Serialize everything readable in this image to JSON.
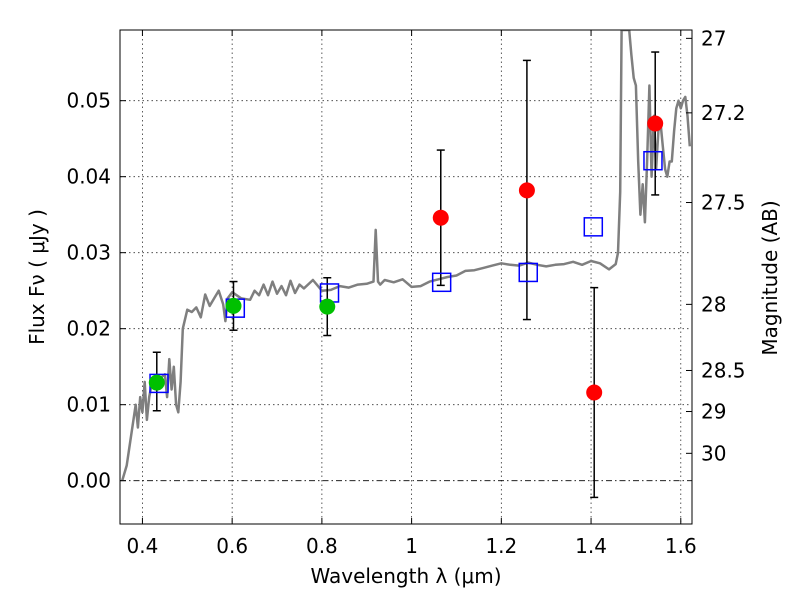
{
  "chart_data": {
    "type": "scatter",
    "title": "",
    "xlabel": "Wavelength  λ (μm)",
    "ylabel": "Flux  Fν  ( μJy )",
    "ylabel_right": "Magnitude (AB)",
    "xlim": [
      0.35,
      1.625
    ],
    "ylim": [
      -0.0057,
      0.0593
    ],
    "x_ticks": [
      0.4,
      0.6,
      0.8,
      1.0,
      1.2,
      1.4,
      1.6
    ],
    "x_tick_labels": [
      "0.4",
      "0.6",
      "0.8",
      "1",
      "1.2",
      "1.4",
      "1.6"
    ],
    "y_ticks": [
      0.0,
      0.01,
      0.02,
      0.03,
      0.04,
      0.05
    ],
    "y_tick_labels": [
      "0.00",
      "0.01",
      "0.02",
      "0.03",
      "0.04",
      "0.05"
    ],
    "right_ticks": [
      {
        "label": "27",
        "flux": 0.0582
      },
      {
        "label": "27.2",
        "flux": 0.0484
      },
      {
        "label": "27.5",
        "flux": 0.0366
      },
      {
        "label": "28",
        "flux": 0.0232
      },
      {
        "label": "28.5",
        "flux": 0.0145
      },
      {
        "label": "29",
        "flux": 0.0091
      },
      {
        "label": "30",
        "flux": 0.0036
      }
    ],
    "grid": true,
    "colors": {
      "spectrum": "#7f7f7f",
      "red_points": "#ff0000",
      "green_points": "#00c000",
      "model_squares": "#0000ff",
      "errorbars": "#000000"
    },
    "series": [
      {
        "marker": "circle",
        "color": "#00c000",
        "x": [
          0.432,
          0.603,
          0.812
        ],
        "y": [
          0.0129,
          0.023,
          0.0229
        ],
        "yerr_low": [
          0.0037,
          0.0032,
          0.0038
        ],
        "yerr_high": [
          0.004,
          0.0032,
          0.0038
        ]
      },
      {
        "marker": "circle",
        "color": "#ff0000",
        "x": [
          1.065,
          1.257,
          1.407,
          1.543
        ],
        "y": [
          0.0346,
          0.0382,
          0.0116,
          0.047
        ],
        "yerr_low": [
          0.0089,
          0.017,
          0.0138,
          0.0094
        ],
        "yerr_high": [
          0.0089,
          0.0171,
          0.0138,
          0.0094
        ]
      },
      {
        "marker": "open-square",
        "color": "#0000ff",
        "x": [
          0.437,
          0.607,
          0.817,
          1.067,
          1.26,
          1.405,
          1.538
        ],
        "y": [
          0.0128,
          0.0227,
          0.0247,
          0.0261,
          0.0274,
          0.0334,
          0.0421
        ]
      },
      {
        "marker": "line",
        "color": "#7f7f7f",
        "x": [
          0.355,
          0.365,
          0.375,
          0.385,
          0.39,
          0.395,
          0.4,
          0.405,
          0.41,
          0.415,
          0.42,
          0.43,
          0.44,
          0.45,
          0.455,
          0.46,
          0.465,
          0.47,
          0.475,
          0.48,
          0.485,
          0.49,
          0.5,
          0.51,
          0.52,
          0.53,
          0.54,
          0.55,
          0.56,
          0.57,
          0.58,
          0.585,
          0.59,
          0.6,
          0.62,
          0.64,
          0.65,
          0.66,
          0.67,
          0.68,
          0.69,
          0.7,
          0.71,
          0.72,
          0.73,
          0.74,
          0.75,
          0.76,
          0.78,
          0.8,
          0.82,
          0.84,
          0.86,
          0.88,
          0.9,
          0.915,
          0.92,
          0.925,
          0.93,
          0.94,
          0.96,
          0.98,
          1.0,
          1.02,
          1.04,
          1.06,
          1.08,
          1.1,
          1.12,
          1.14,
          1.16,
          1.18,
          1.2,
          1.22,
          1.24,
          1.26,
          1.28,
          1.3,
          1.32,
          1.34,
          1.36,
          1.38,
          1.4,
          1.42,
          1.44,
          1.455,
          1.46,
          1.465,
          1.468,
          1.47,
          1.475,
          1.48,
          1.485,
          1.49,
          1.495,
          1.5,
          1.505,
          1.51,
          1.515,
          1.52,
          1.525,
          1.53,
          1.535,
          1.54,
          1.545,
          1.55,
          1.555,
          1.56,
          1.565,
          1.57,
          1.575,
          1.58,
          1.585,
          1.59,
          1.595,
          1.6,
          1.605,
          1.61,
          1.615,
          1.62
        ],
        "y": [
          0.0,
          0.002,
          0.006,
          0.01,
          0.007,
          0.011,
          0.009,
          0.013,
          0.008,
          0.011,
          0.0125,
          0.0125,
          0.0135,
          0.014,
          0.011,
          0.016,
          0.012,
          0.015,
          0.01,
          0.009,
          0.013,
          0.02,
          0.0225,
          0.0222,
          0.0228,
          0.0215,
          0.0245,
          0.023,
          0.024,
          0.025,
          0.0232,
          0.021,
          0.024,
          0.0248,
          0.024,
          0.0238,
          0.025,
          0.0244,
          0.0258,
          0.0244,
          0.0262,
          0.0246,
          0.0256,
          0.0244,
          0.0263,
          0.0247,
          0.0258,
          0.0253,
          0.0264,
          0.025,
          0.0251,
          0.0256,
          0.0254,
          0.0258,
          0.0259,
          0.0262,
          0.033,
          0.0262,
          0.0258,
          0.0264,
          0.0261,
          0.0265,
          0.0255,
          0.0256,
          0.0262,
          0.0265,
          0.0268,
          0.027,
          0.0276,
          0.0277,
          0.028,
          0.0283,
          0.0286,
          0.0284,
          0.0283,
          0.0287,
          0.0284,
          0.0282,
          0.0284,
          0.0285,
          0.0288,
          0.0284,
          0.0289,
          0.0286,
          0.0278,
          0.0285,
          0.03,
          0.038,
          0.0593,
          0.0593,
          0.0593,
          0.0593,
          0.0593,
          0.056,
          0.053,
          0.052,
          0.042,
          0.035,
          0.039,
          0.034,
          0.042,
          0.052,
          0.04,
          0.048,
          0.041,
          0.046,
          0.047,
          0.044,
          0.041,
          0.04,
          0.042,
          0.042,
          0.046,
          0.049,
          0.05,
          0.049,
          0.05,
          0.0505,
          0.048,
          0.044
        ]
      }
    ]
  }
}
